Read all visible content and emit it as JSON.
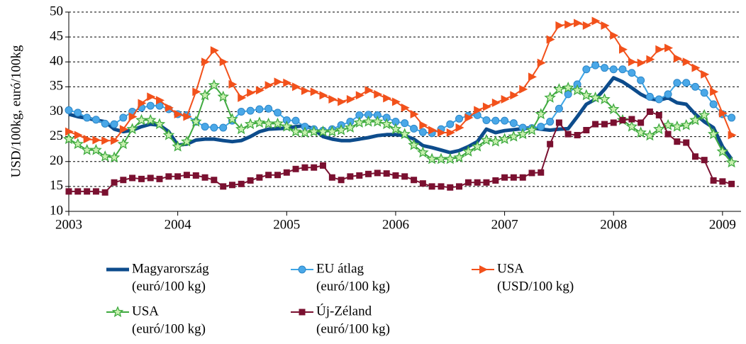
{
  "chart_data": {
    "type": "line",
    "y_label": "USD/100kg, euró/100kg",
    "x": [
      2003,
      2003.083,
      2003.167,
      2003.25,
      2003.333,
      2003.417,
      2003.5,
      2003.583,
      2003.667,
      2003.75,
      2003.833,
      2003.917,
      2004,
      2004.083,
      2004.167,
      2004.25,
      2004.333,
      2004.417,
      2004.5,
      2004.583,
      2004.667,
      2004.75,
      2004.833,
      2004.917,
      2005,
      2005.083,
      2005.167,
      2005.25,
      2005.333,
      2005.417,
      2005.5,
      2005.583,
      2005.667,
      2005.75,
      2005.833,
      2005.917,
      2006,
      2006.083,
      2006.167,
      2006.25,
      2006.333,
      2006.417,
      2006.5,
      2006.583,
      2006.667,
      2006.75,
      2006.833,
      2006.917,
      2007,
      2007.083,
      2007.167,
      2007.25,
      2007.333,
      2007.417,
      2007.5,
      2007.583,
      2007.667,
      2007.75,
      2007.833,
      2007.917,
      2008,
      2008.083,
      2008.167,
      2008.25,
      2008.333,
      2008.417,
      2008.5,
      2008.583,
      2008.667,
      2008.75,
      2008.833,
      2008.917,
      2009,
      2009.083
    ],
    "xlim": [
      2003,
      2009.17
    ],
    "xticks": [
      2003,
      2004,
      2005,
      2006,
      2007,
      2008,
      2009
    ],
    "ylim": [
      10,
      50
    ],
    "yticks": [
      10,
      15,
      20,
      25,
      30,
      35,
      40,
      45,
      50
    ],
    "grid": true,
    "series": [
      {
        "name": "Magyarország",
        "unit": "(euró/100 kg)",
        "color": "#0d4c8c",
        "values": [
          29.5,
          29,
          28.7,
          28.3,
          28,
          26.5,
          26,
          26.3,
          27,
          27.5,
          27.3,
          26,
          23.3,
          23.5,
          24.3,
          24.5,
          24.5,
          24.2,
          24,
          24.2,
          25,
          26,
          26.5,
          26.6,
          26.7,
          27,
          27.2,
          26.5,
          25,
          24.5,
          24.2,
          24.2,
          24.5,
          24.8,
          25.2,
          25.4,
          25.4,
          25.2,
          24.5,
          23.2,
          22.8,
          22.3,
          21.8,
          22.2,
          23,
          24,
          26.5,
          25.8,
          26.2,
          26.4,
          26.6,
          26.8,
          26.5,
          26.3,
          26.5,
          26.6,
          29,
          31.5,
          32.5,
          34.5,
          36.8,
          36,
          34.8,
          33.5,
          32.6,
          32.3,
          32.8,
          31.8,
          31.5,
          29.5,
          28,
          26.8,
          23,
          20.5
        ]
      },
      {
        "name": "EU átlag",
        "unit": "(euró/100 kg)",
        "color": "#3ea6e6",
        "marker": "circle",
        "values": [
          30.3,
          29.8,
          28.8,
          28.4,
          27.6,
          27.5,
          28.8,
          30,
          30.8,
          31.2,
          31.2,
          30.5,
          29.5,
          29.3,
          28,
          27,
          26.8,
          26.8,
          28.2,
          30,
          30.2,
          30.5,
          30.6,
          29.8,
          28.3,
          28.2,
          27,
          26.5,
          26.2,
          26.5,
          27.3,
          28,
          29.3,
          29.4,
          29.3,
          28.8,
          28,
          27.7,
          26.6,
          25.9,
          25.7,
          26.5,
          27.5,
          28.6,
          29.2,
          29.3,
          28.3,
          28.2,
          28.2,
          27.7,
          26.8,
          26.7,
          27,
          28,
          30.6,
          33.5,
          35.5,
          38.5,
          39.3,
          38.8,
          38.5,
          38.5,
          37.8,
          36.3,
          33,
          32.5,
          33.5,
          35.8,
          35.8,
          35,
          33.8,
          31.5,
          29.5,
          28.8
        ]
      },
      {
        "name": "USA",
        "unit": "(USD/100 kg)",
        "color": "#f2511b",
        "marker": "triangle",
        "values": [
          26,
          25.3,
          24.5,
          24.3,
          24.2,
          24.2,
          26.5,
          29,
          31.7,
          33,
          32.3,
          30.8,
          29.5,
          29,
          34,
          40,
          42.3,
          40,
          35.5,
          32.8,
          33.8,
          34.3,
          35.3,
          36,
          35.8,
          35,
          34.2,
          34,
          33.3,
          32.5,
          32,
          32.5,
          33.3,
          34.3,
          33.5,
          32.7,
          32,
          30.8,
          29.5,
          27.3,
          26.3,
          25.8,
          25.8,
          26.8,
          28.8,
          30.3,
          31,
          31.8,
          32.5,
          33.3,
          34.5,
          37,
          39.8,
          44.5,
          47.3,
          47.5,
          47.8,
          47.3,
          48.2,
          47.3,
          45.3,
          42.5,
          40,
          39.8,
          40.5,
          42.5,
          42.8,
          40.7,
          40,
          38.8,
          37.5,
          34,
          29.7,
          25.3
        ]
      },
      {
        "name": "USA",
        "unit": "(euró/100 kg)",
        "color": "#3faa3f",
        "marker": "star",
        "values": [
          24.5,
          23.5,
          22.3,
          22.3,
          21,
          20.8,
          23.5,
          26.5,
          28.3,
          28.3,
          27.5,
          25.3,
          23,
          24,
          28,
          33.3,
          35.3,
          33,
          28.5,
          26.5,
          27.5,
          27.8,
          27.6,
          27.6,
          27,
          26,
          25.8,
          26,
          26,
          26,
          26.3,
          26.8,
          27.8,
          28,
          28,
          27.5,
          26.5,
          25.5,
          23.3,
          21.8,
          20.5,
          20.5,
          20.5,
          20.8,
          22,
          23,
          24.3,
          24,
          24.5,
          25,
          25.5,
          26.3,
          29.5,
          32.8,
          34.5,
          34.8,
          34.3,
          33.3,
          32.8,
          32.5,
          30.5,
          28.3,
          27,
          25.8,
          25.2,
          26.5,
          27.3,
          27,
          27.3,
          28.3,
          29.3,
          25.5,
          22,
          19.8
        ]
      },
      {
        "name": "Új-Zéland",
        "unit": "(euró/100 kg)",
        "color": "#7a1030",
        "marker": "square",
        "values": [
          14,
          14,
          14,
          14,
          13.8,
          15.8,
          16.3,
          16.7,
          16.5,
          16.7,
          16.5,
          17,
          17,
          17.3,
          17.2,
          16.8,
          16.3,
          15,
          15.3,
          15.5,
          16.2,
          16.8,
          17.3,
          17.3,
          17.8,
          18.5,
          18.8,
          18.8,
          19.2,
          16.8,
          16.3,
          17,
          17.2,
          17.5,
          17.7,
          17.6,
          17.2,
          17,
          16.3,
          15.6,
          15,
          15,
          14.8,
          15,
          15.8,
          15.8,
          15.8,
          16.2,
          16.8,
          16.8,
          16.8,
          17.7,
          17.8,
          23.5,
          27.8,
          25.5,
          25.3,
          26.3,
          27.5,
          27.5,
          27.8,
          28.3,
          28.5,
          27.8,
          30,
          29.3,
          25.5,
          24,
          23.8,
          21,
          20.3,
          16.2,
          16,
          15.5
        ]
      }
    ]
  }
}
